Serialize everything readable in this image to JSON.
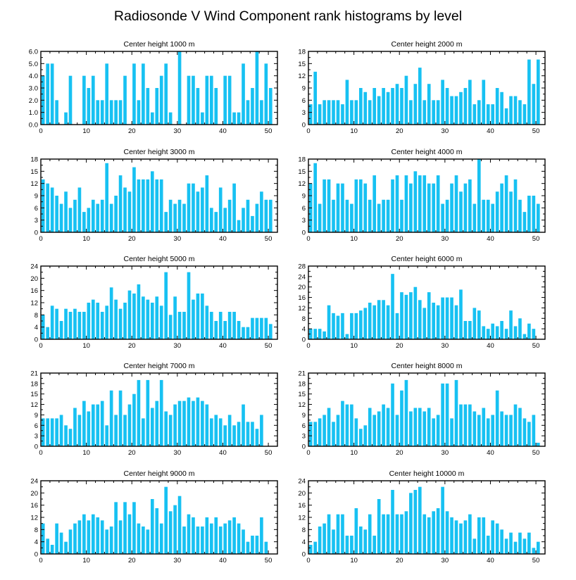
{
  "title": "Radiosonde V Wind Component rank histograms by level",
  "colors": {
    "bar": "#17c1f2",
    "frame": "#000000"
  },
  "chart_data": [
    {
      "type": "bar",
      "title": "Center height 1000 m",
      "xlim": [
        0,
        52
      ],
      "ylim": [
        0,
        6
      ],
      "xticks": [
        0,
        10,
        20,
        30,
        40,
        50
      ],
      "yticks": [
        0,
        1,
        2,
        3,
        4,
        5,
        6
      ],
      "ytick_labels": [
        "0.0",
        "1.0",
        "2.0",
        "3.0",
        "4.0",
        "5.0",
        "6.0"
      ],
      "values": [
        4,
        5,
        5,
        2,
        0,
        1,
        4,
        0,
        0,
        4,
        3,
        4,
        2,
        2,
        5,
        2,
        2,
        2,
        4,
        0,
        5,
        2,
        5,
        3,
        1,
        3,
        4,
        5,
        1,
        0,
        6,
        0,
        4,
        4,
        3,
        1,
        4,
        4,
        3,
        0,
        4,
        4,
        1,
        1,
        5,
        2,
        3,
        6,
        2,
        5,
        3
      ]
    },
    {
      "type": "bar",
      "title": "Center height 2000 m",
      "xlim": [
        0,
        52
      ],
      "ylim": [
        0,
        18
      ],
      "xticks": [
        0,
        10,
        20,
        30,
        40,
        50
      ],
      "yticks": [
        0,
        3,
        6,
        9,
        12,
        15,
        18
      ],
      "ytick_labels": [
        "0",
        "3",
        "6",
        "9",
        "12",
        "15",
        "18"
      ],
      "values": [
        5,
        13,
        5,
        6,
        6,
        6,
        6,
        5,
        11,
        6,
        6,
        9,
        8,
        6,
        9,
        7,
        9,
        8,
        9,
        10,
        9,
        12,
        6,
        10,
        14,
        6,
        10,
        6,
        6,
        11,
        9,
        7,
        7,
        8,
        9,
        11,
        5,
        6,
        11,
        5,
        5,
        9,
        8,
        4,
        7,
        7,
        6,
        5,
        16,
        10,
        16
      ]
    },
    {
      "type": "bar",
      "title": "Center height 3000 m",
      "xlim": [
        0,
        52
      ],
      "ylim": [
        0,
        18
      ],
      "xticks": [
        0,
        10,
        20,
        30,
        40,
        50
      ],
      "yticks": [
        0,
        3,
        6,
        9,
        12,
        15,
        18
      ],
      "ytick_labels": [
        "0",
        "3",
        "6",
        "9",
        "12",
        "15",
        "18"
      ],
      "values": [
        13,
        12,
        11,
        9,
        7,
        10,
        6,
        8,
        11,
        5,
        6,
        8,
        7,
        8,
        17,
        7,
        9,
        14,
        11,
        10,
        16,
        13,
        13,
        13,
        15,
        13,
        13,
        5,
        8,
        7,
        8,
        7,
        12,
        12,
        10,
        11,
        14,
        6,
        5,
        11,
        6,
        8,
        12,
        3,
        6,
        8,
        4,
        7,
        10,
        8,
        8
      ]
    },
    {
      "type": "bar",
      "title": "Center height 4000 m",
      "xlim": [
        0,
        52
      ],
      "ylim": [
        0,
        18
      ],
      "xticks": [
        0,
        10,
        20,
        30,
        40,
        50
      ],
      "yticks": [
        0,
        3,
        6,
        9,
        12,
        15,
        18
      ],
      "ytick_labels": [
        "0",
        "3",
        "6",
        "9",
        "12",
        "15",
        "18"
      ],
      "values": [
        12,
        17,
        7,
        13,
        13,
        8,
        12,
        12,
        8,
        7,
        13,
        13,
        12,
        8,
        14,
        7,
        8,
        8,
        13,
        14,
        8,
        14,
        12,
        15,
        14,
        14,
        12,
        12,
        14,
        7,
        8,
        12,
        14,
        10,
        12,
        13,
        7,
        18,
        8,
        8,
        7,
        10,
        12,
        14,
        10,
        13,
        8,
        5,
        9,
        9,
        7
      ]
    },
    {
      "type": "bar",
      "title": "Center height 5000 m",
      "xlim": [
        0,
        52
      ],
      "ylim": [
        0,
        24
      ],
      "xticks": [
        0,
        10,
        20,
        30,
        40,
        50
      ],
      "yticks": [
        0,
        4,
        8,
        12,
        16,
        20,
        24
      ],
      "ytick_labels": [
        "0",
        "4",
        "8",
        "12",
        "16",
        "20",
        "24"
      ],
      "values": [
        8,
        4,
        11,
        10,
        6,
        10,
        9,
        10,
        9,
        9,
        12,
        13,
        12,
        9,
        11,
        17,
        13,
        10,
        12,
        16,
        15,
        18,
        14,
        13,
        12,
        14,
        11,
        22,
        8,
        14,
        9,
        9,
        22,
        13,
        15,
        15,
        11,
        9,
        6,
        9,
        6,
        9,
        9,
        6,
        4,
        4,
        7,
        7,
        7,
        7,
        5
      ]
    },
    {
      "type": "bar",
      "title": "Center height 6000 m",
      "xlim": [
        0,
        52
      ],
      "ylim": [
        0,
        28
      ],
      "xticks": [
        0,
        10,
        20,
        30,
        40,
        50
      ],
      "yticks": [
        0,
        4,
        8,
        12,
        16,
        20,
        24,
        28
      ],
      "ytick_labels": [
        "0",
        "4",
        "8",
        "12",
        "16",
        "20",
        "24",
        "28"
      ],
      "values": [
        4,
        4,
        4,
        3,
        13,
        10,
        9,
        10,
        2,
        10,
        10,
        11,
        12,
        14,
        13,
        15,
        15,
        13,
        25,
        10,
        18,
        17,
        18,
        20,
        15,
        12,
        18,
        14,
        13,
        16,
        16,
        16,
        13,
        19,
        7,
        7,
        12,
        11,
        5,
        4,
        6,
        5,
        7,
        4,
        11,
        5,
        8,
        2,
        6,
        4,
        0
      ]
    },
    {
      "type": "bar",
      "title": "Center height 7000 m",
      "xlim": [
        0,
        52
      ],
      "ylim": [
        0,
        21
      ],
      "xticks": [
        0,
        10,
        20,
        30,
        40,
        50
      ],
      "yticks": [
        0,
        3,
        6,
        9,
        12,
        15,
        18,
        21
      ],
      "ytick_labels": [
        "0",
        "3",
        "6",
        "9",
        "12",
        "15",
        "18",
        "21"
      ],
      "values": [
        8,
        8,
        8,
        8,
        9,
        6,
        5,
        11,
        9,
        13,
        10,
        12,
        12,
        13,
        6,
        16,
        9,
        16,
        9,
        12,
        15,
        19,
        8,
        19,
        11,
        13,
        19,
        10,
        9,
        12,
        13,
        13,
        14,
        13,
        14,
        13,
        12,
        8,
        9,
        8,
        6,
        9,
        6,
        7,
        12,
        7,
        7,
        5,
        9,
        0,
        0
      ]
    },
    {
      "type": "bar",
      "title": "Center height 8000 m",
      "xlim": [
        0,
        52
      ],
      "ylim": [
        0,
        21
      ],
      "xticks": [
        0,
        10,
        20,
        30,
        40,
        50
      ],
      "yticks": [
        0,
        3,
        6,
        9,
        12,
        15,
        18,
        21
      ],
      "ytick_labels": [
        "0",
        "3",
        "6",
        "9",
        "12",
        "15",
        "18",
        "21"
      ],
      "values": [
        7,
        7,
        8,
        9,
        11,
        7,
        9,
        13,
        12,
        12,
        8,
        5,
        6,
        11,
        9,
        10,
        12,
        11,
        18,
        9,
        16,
        19,
        10,
        11,
        11,
        10,
        11,
        8,
        9,
        18,
        18,
        8,
        19,
        12,
        12,
        12,
        10,
        9,
        11,
        8,
        9,
        16,
        10,
        9,
        9,
        12,
        11,
        8,
        7,
        9,
        1
      ]
    },
    {
      "type": "bar",
      "title": "Center height 9000 m",
      "xlim": [
        0,
        52
      ],
      "ylim": [
        0,
        24
      ],
      "xticks": [
        0,
        10,
        20,
        30,
        40,
        50
      ],
      "yticks": [
        0,
        4,
        8,
        12,
        16,
        20,
        24
      ],
      "ytick_labels": [
        "0",
        "4",
        "8",
        "12",
        "16",
        "20",
        "24"
      ],
      "values": [
        10,
        5,
        3,
        10,
        7,
        4,
        8,
        10,
        11,
        13,
        11,
        13,
        12,
        11,
        8,
        9,
        17,
        11,
        17,
        13,
        17,
        10,
        9,
        8,
        18,
        15,
        10,
        22,
        14,
        16,
        19,
        9,
        13,
        12,
        9,
        9,
        12,
        10,
        12,
        9,
        10,
        11,
        12,
        10,
        8,
        4,
        6,
        6,
        12,
        4,
        0
      ]
    },
    {
      "type": "bar",
      "title": "Center height 10000 m",
      "xlim": [
        0,
        52
      ],
      "ylim": [
        0,
        24
      ],
      "xticks": [
        0,
        10,
        20,
        30,
        40,
        50
      ],
      "yticks": [
        0,
        4,
        8,
        12,
        16,
        20,
        24
      ],
      "ytick_labels": [
        "0",
        "4",
        "8",
        "12",
        "16",
        "20",
        "24"
      ],
      "values": [
        3,
        4,
        9,
        10,
        13,
        8,
        13,
        13,
        6,
        6,
        15,
        9,
        8,
        13,
        6,
        18,
        13,
        13,
        21,
        13,
        13,
        14,
        20,
        21,
        22,
        13,
        12,
        14,
        15,
        22,
        14,
        12,
        11,
        10,
        11,
        13,
        5,
        12,
        12,
        6,
        11,
        10,
        8,
        5,
        7,
        4,
        7,
        5,
        7,
        2,
        4
      ]
    }
  ]
}
